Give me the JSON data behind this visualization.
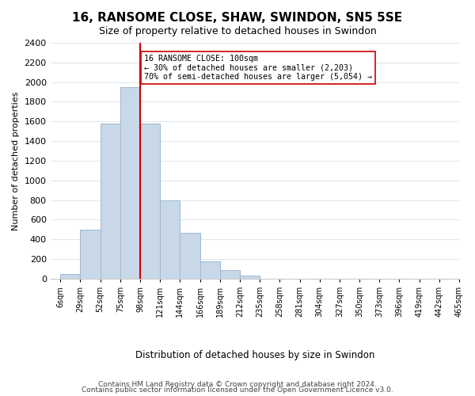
{
  "title": "16, RANSOME CLOSE, SHAW, SWINDON, SN5 5SE",
  "subtitle": "Size of property relative to detached houses in Swindon",
  "xlabel": "Distribution of detached houses by size in Swindon",
  "ylabel": "Number of detached properties",
  "bin_labels": [
    "6sqm",
    "29sqm",
    "52sqm",
    "75sqm",
    "98sqm",
    "121sqm",
    "144sqm",
    "166sqm",
    "189sqm",
    "212sqm",
    "235sqm",
    "258sqm",
    "281sqm",
    "304sqm",
    "327sqm",
    "350sqm",
    "373sqm",
    "396sqm",
    "419sqm",
    "442sqm",
    "465sqm"
  ],
  "bar_heights": [
    50,
    500,
    1580,
    1950,
    1580,
    800,
    470,
    175,
    90,
    35,
    0,
    0,
    0,
    0,
    0,
    0,
    0,
    0,
    0,
    0
  ],
  "bar_color": "#c8d8e8",
  "bar_edge_color": "#a0b8d0",
  "vline_x": 4,
  "vline_color": "#cc0000",
  "annotation_text": "16 RANSOME CLOSE: 100sqm\n← 30% of detached houses are smaller (2,203)\n70% of semi-detached houses are larger (5,054) →",
  "annotation_box_edge": "#cc0000",
  "ylim": [
    0,
    2400
  ],
  "yticks": [
    0,
    200,
    400,
    600,
    800,
    1000,
    1200,
    1400,
    1600,
    1800,
    2000,
    2200,
    2400
  ],
  "footer_line1": "Contains HM Land Registry data © Crown copyright and database right 2024.",
  "footer_line2": "Contains public sector information licensed under the Open Government Licence v3.0.",
  "bg_color": "#ffffff",
  "grid_color": "#e0e8f0"
}
